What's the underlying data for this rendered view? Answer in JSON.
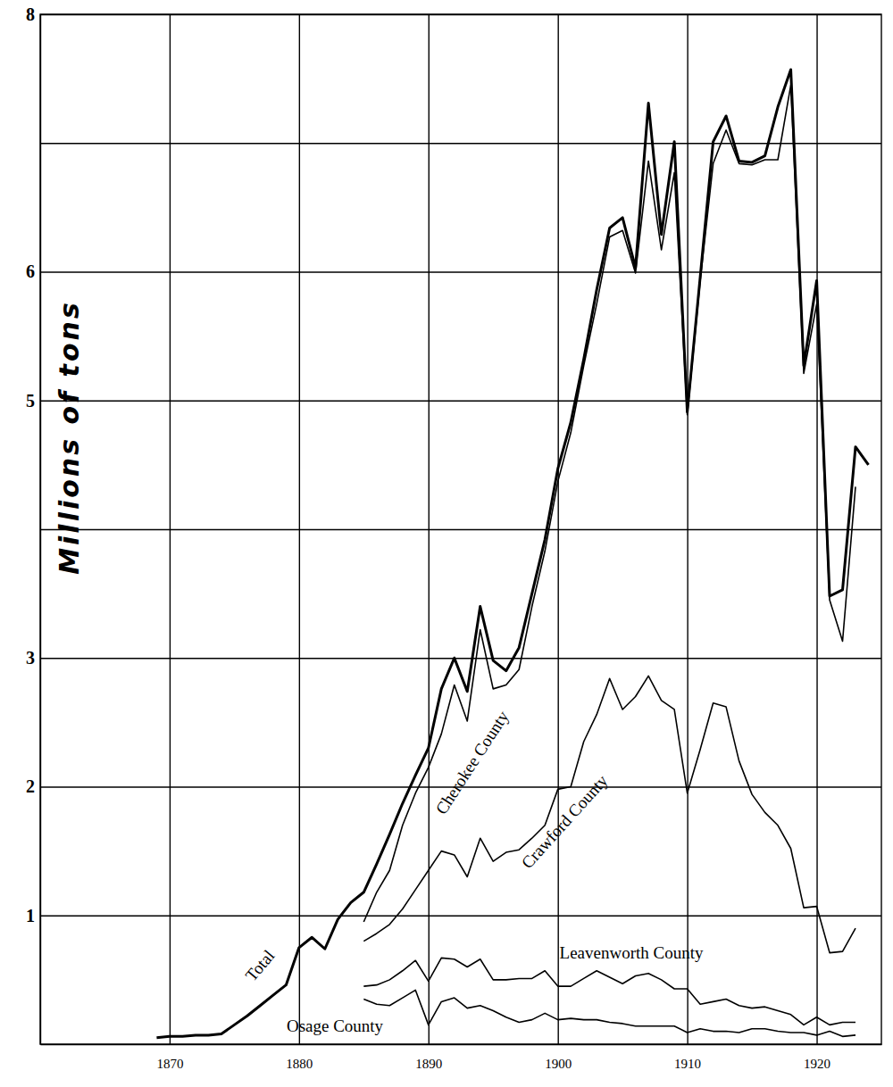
{
  "chart_data": {
    "type": "line",
    "y_label": "Millions of tons",
    "x": [
      1869,
      1870,
      1871,
      1872,
      1873,
      1874,
      1875,
      1876,
      1877,
      1878,
      1879,
      1880,
      1881,
      1882,
      1883,
      1884,
      1885,
      1886,
      1887,
      1888,
      1889,
      1890,
      1891,
      1892,
      1893,
      1894,
      1895,
      1896,
      1897,
      1898,
      1899,
      1900,
      1901,
      1902,
      1903,
      1904,
      1905,
      1906,
      1907,
      1908,
      1909,
      1910,
      1911,
      1912,
      1913,
      1914,
      1915,
      1916,
      1917,
      1918,
      1919,
      1920,
      1921,
      1922,
      1923,
      1924
    ],
    "xlim": [
      1860,
      1925
    ],
    "xticks": [
      1870,
      1880,
      1890,
      1900,
      1910,
      1920
    ],
    "ylim": [
      0,
      8
    ],
    "yticks": [
      1,
      2,
      3,
      {
        "value": 4,
        "label": null
      },
      5,
      6,
      {
        "value": 7,
        "label": null
      },
      8
    ],
    "grid": true,
    "series": [
      {
        "name": "Total",
        "color": "#000000",
        "line_style": "thick",
        "values": [
          0.05,
          0.06,
          0.06,
          0.07,
          0.07,
          0.08,
          0.15,
          0.22,
          0.3,
          0.38,
          0.46,
          0.75,
          0.83,
          0.74,
          0.97,
          1.1,
          1.18,
          1.4,
          1.63,
          1.87,
          2.09,
          2.3,
          2.76,
          3.0,
          2.74,
          3.4,
          2.98,
          2.9,
          3.08,
          3.5,
          3.92,
          4.47,
          4.83,
          5.32,
          5.86,
          6.34,
          6.42,
          6.03,
          7.31,
          6.29,
          7.01,
          4.91,
          5.96,
          7.01,
          7.21,
          6.86,
          6.85,
          6.9,
          7.28,
          7.57,
          5.27,
          5.93,
          3.48,
          3.53,
          4.64,
          4.5
        ]
      },
      {
        "name": "Cherokee County",
        "color": "#000000",
        "line_style": "solid",
        "values": [
          null,
          null,
          null,
          null,
          null,
          null,
          null,
          null,
          null,
          null,
          null,
          null,
          null,
          null,
          null,
          null,
          0.95,
          1.18,
          1.35,
          1.7,
          1.95,
          2.15,
          2.41,
          2.79,
          2.51,
          3.22,
          2.76,
          2.79,
          2.91,
          3.4,
          3.83,
          4.37,
          4.75,
          5.27,
          5.75,
          6.27,
          6.32,
          5.99,
          6.86,
          6.17,
          6.77,
          4.89,
          5.93,
          6.84,
          7.1,
          6.84,
          6.83,
          6.87,
          6.87,
          7.45,
          5.21,
          5.75,
          3.45,
          3.13,
          4.33,
          null
        ]
      },
      {
        "name": "Crawford County",
        "color": "#000000",
        "line_style": "solid",
        "values": [
          null,
          null,
          null,
          null,
          null,
          null,
          null,
          null,
          null,
          null,
          null,
          null,
          null,
          null,
          null,
          null,
          0.8,
          0.86,
          0.93,
          1.05,
          1.2,
          1.35,
          1.5,
          1.47,
          1.3,
          1.6,
          1.42,
          1.49,
          1.51,
          1.6,
          1.7,
          1.98,
          2.0,
          2.35,
          2.56,
          2.84,
          2.6,
          2.7,
          2.86,
          2.67,
          2.6,
          1.95,
          2.29,
          2.65,
          2.62,
          2.2,
          1.94,
          1.8,
          1.7,
          1.52,
          1.06,
          1.07,
          0.71,
          0.72,
          0.9,
          null
        ]
      },
      {
        "name": "Leavenworth County",
        "color": "#000000",
        "line_style": "solid",
        "values": [
          null,
          null,
          null,
          null,
          null,
          null,
          null,
          null,
          null,
          null,
          null,
          null,
          null,
          null,
          null,
          null,
          0.45,
          0.46,
          0.5,
          0.57,
          0.65,
          0.49,
          0.67,
          0.66,
          0.6,
          0.66,
          0.5,
          0.5,
          0.51,
          0.51,
          0.57,
          0.45,
          0.45,
          0.51,
          0.57,
          0.52,
          0.47,
          0.53,
          0.55,
          0.5,
          0.43,
          0.43,
          0.31,
          0.33,
          0.35,
          0.3,
          0.28,
          0.29,
          0.26,
          0.23,
          0.15,
          0.21,
          0.15,
          0.17,
          0.17,
          null
        ]
      },
      {
        "name": "Osage County",
        "color": "#000000",
        "line_style": "solid",
        "values": [
          null,
          null,
          null,
          null,
          null,
          null,
          null,
          null,
          null,
          null,
          null,
          null,
          null,
          null,
          null,
          null,
          0.35,
          0.31,
          0.3,
          0.36,
          0.42,
          0.15,
          0.33,
          0.36,
          0.28,
          0.3,
          0.26,
          0.21,
          0.17,
          0.19,
          0.24,
          0.19,
          0.2,
          0.19,
          0.19,
          0.17,
          0.16,
          0.14,
          0.14,
          0.14,
          0.14,
          0.09,
          0.12,
          0.1,
          0.1,
          0.09,
          0.12,
          0.12,
          0.1,
          0.09,
          0.09,
          0.07,
          0.1,
          0.06,
          0.07,
          null
        ]
      }
    ]
  }
}
